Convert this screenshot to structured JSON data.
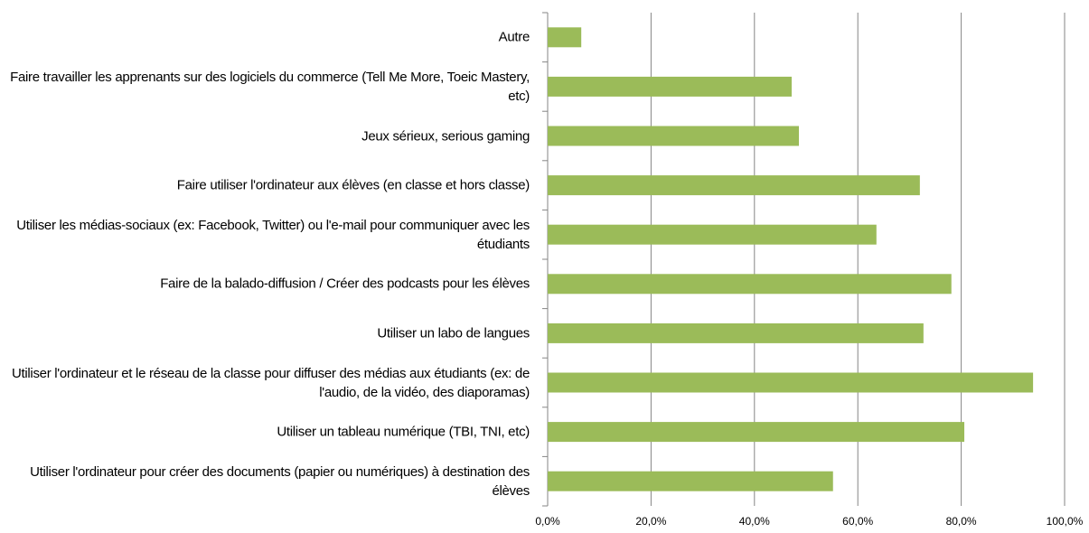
{
  "chart_data": {
    "type": "barh",
    "categories": [
      "Autre",
      "Faire travailler les apprenants sur des logiciels du commerce (Tell Me More, Toeic Mastery, etc)",
      "Jeux sérieux, serious gaming",
      "Faire utiliser l'ordinateur aux élèves (en classe et hors classe)",
      "Utiliser les médias-sociaux (ex: Facebook, Twitter) ou l'e-mail pour communiquer avec les étudiants",
      "Faire de la balado-diffusion / Créer des podcasts pour les élèves",
      "Utiliser un labo de langues",
      "Utiliser l'ordinateur et le réseau de la classe pour diffuser des médias aux étudiants (ex: de l'audio, de la vidéo, des diaporamas)",
      "Utiliser un tableau numérique (TBI, TNI, etc)",
      "Utiliser l'ordinateur pour créer des documents (papier ou numériques) à destination des élèves"
    ],
    "values": [
      6.5,
      47.2,
      48.6,
      72.0,
      63.6,
      78.1,
      72.7,
      93.9,
      80.6,
      55.2
    ],
    "color": "#9bbb59",
    "xlim": [
      0,
      100
    ],
    "xticks": [
      {
        "value": 0,
        "label": "0,0%"
      },
      {
        "value": 20,
        "label": "20,0%"
      },
      {
        "value": 40,
        "label": "40,0%"
      },
      {
        "value": 60,
        "label": "60,0%"
      },
      {
        "value": 80,
        "label": "80,0%"
      },
      {
        "value": 100,
        "label": "100,0%"
      }
    ],
    "grid": true
  }
}
